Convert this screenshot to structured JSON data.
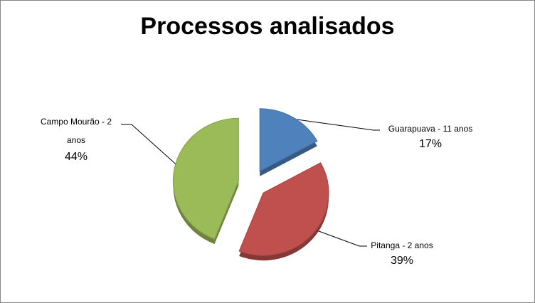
{
  "chart_data": {
    "type": "pie",
    "title": "Processos analisados",
    "categories": [
      "Guarapuava - 11 anos",
      "Pitanga - 2 anos",
      "Campo Mourão - 2 anos"
    ],
    "values": [
      17,
      39,
      44
    ],
    "value_labels": [
      "17%",
      "39%",
      "44%"
    ],
    "colors": [
      "#4f81bd",
      "#c0504d",
      "#9bbb59"
    ]
  }
}
